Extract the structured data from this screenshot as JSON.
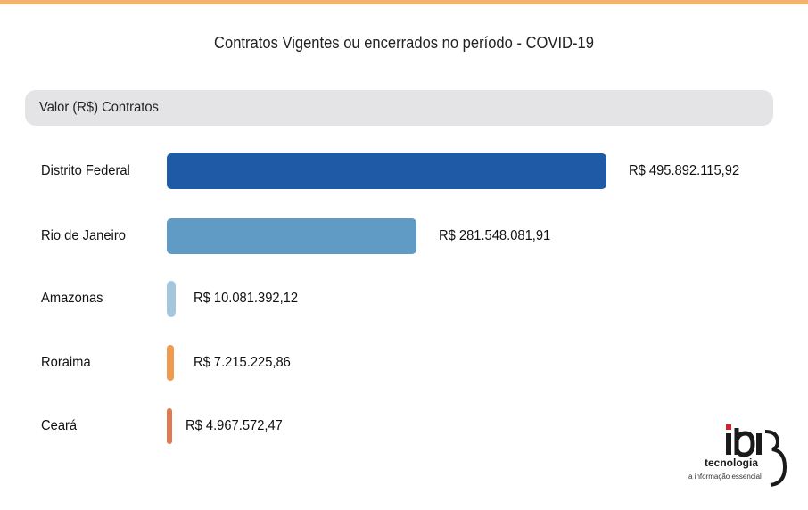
{
  "chart_data": {
    "type": "bar",
    "orientation": "horizontal",
    "title": "Contratos Vigentes ou encerrados no período - COVID-19",
    "series_header": "Valor (R$) Contratos",
    "categories": [
      "Distrito Federal",
      "Rio de Janeiro",
      "Amazonas",
      "Roraima",
      "Ceará"
    ],
    "values": [
      495892115.92,
      281548081.91,
      10081392.12,
      7215225.86,
      4967572.47
    ],
    "value_labels": [
      "R$ 495.892.115,92",
      "R$ 281.548.081,91",
      "R$ 10.081.392,12",
      "R$ 7.215.225,86",
      "R$ 4.967.572,47"
    ],
    "colors": [
      "#1f5aa6",
      "#5f9bc4",
      "#a6c6de",
      "#ee9a4f",
      "#e07a52"
    ],
    "grid": false,
    "legend": "none"
  },
  "colors": {
    "accent_bar": "#f4b26a",
    "header_bg": "#e4e4e6"
  },
  "logo": {
    "wordmark": "ibi",
    "name": "tecnologia",
    "tagline": "a informação essencial"
  }
}
